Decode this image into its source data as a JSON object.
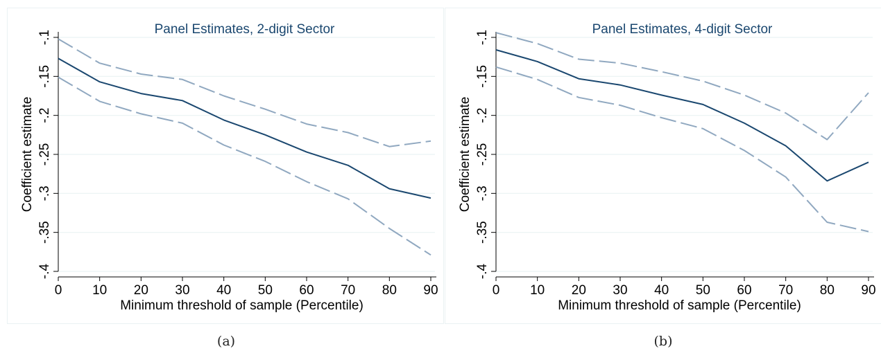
{
  "colors": {
    "estimate": "#1a476f",
    "ci": "#90a8c0",
    "grid": "#eaf2f3",
    "text": "#1a476f"
  },
  "chart_data": [
    {
      "type": "line",
      "title": "Panel Estimates, 2-digit Sector",
      "xlabel": "Minimum threshold of sample (Percentile)",
      "ylabel": "Coefficient estimate",
      "xlim": [
        0,
        90
      ],
      "ylim": [
        -0.4,
        -0.1
      ],
      "grid": true,
      "x": [
        0,
        10,
        20,
        30,
        40,
        50,
        60,
        70,
        80,
        90
      ],
      "xticks": [
        "0",
        "10",
        "20",
        "30",
        "40",
        "50",
        "60",
        "70",
        "80",
        "90"
      ],
      "yticks": [
        {
          "value": -0.1,
          "label": "-.1"
        },
        {
          "value": -0.15,
          "label": "-.15"
        },
        {
          "value": -0.2,
          "label": "-.2"
        },
        {
          "value": -0.25,
          "label": "-.25"
        },
        {
          "value": -0.3,
          "label": "-.3"
        },
        {
          "value": -0.35,
          "label": "-.35"
        },
        {
          "value": -0.4,
          "label": "-.4"
        }
      ],
      "series": [
        {
          "style": "estimate",
          "values": [
            -0.127,
            -0.157,
            -0.172,
            -0.181,
            -0.206,
            -0.225,
            -0.247,
            -0.264,
            -0.294,
            -0.306
          ]
        },
        {
          "style": "ci-upper",
          "values": [
            -0.102,
            -0.133,
            -0.147,
            -0.154,
            -0.175,
            -0.192,
            -0.211,
            -0.222,
            -0.24,
            -0.233
          ]
        },
        {
          "style": "ci-lower",
          "values": [
            -0.151,
            -0.182,
            -0.198,
            -0.21,
            -0.238,
            -0.259,
            -0.285,
            -0.307,
            -0.345,
            -0.379
          ]
        }
      ]
    },
    {
      "type": "line",
      "title": "Panel Estimates, 4-digit Sector",
      "xlabel": "Minimum threshold of sample (Percentile)",
      "ylabel": "Coefficient estimate",
      "xlim": [
        0,
        90
      ],
      "ylim": [
        -0.4,
        -0.1
      ],
      "grid": true,
      "x": [
        0,
        10,
        20,
        30,
        40,
        50,
        60,
        70,
        80,
        90
      ],
      "xticks": [
        "0",
        "10",
        "20",
        "30",
        "40",
        "50",
        "60",
        "70",
        "80",
        "90"
      ],
      "yticks": [
        {
          "value": -0.1,
          "label": "-.1"
        },
        {
          "value": -0.15,
          "label": "-.15"
        },
        {
          "value": -0.2,
          "label": "-.2"
        },
        {
          "value": -0.25,
          "label": "-.25"
        },
        {
          "value": -0.3,
          "label": "-.3"
        },
        {
          "value": -0.35,
          "label": "-.35"
        },
        {
          "value": -0.4,
          "label": "-.4"
        }
      ],
      "series": [
        {
          "style": "estimate",
          "values": [
            -0.116,
            -0.131,
            -0.153,
            -0.161,
            -0.174,
            -0.186,
            -0.21,
            -0.239,
            -0.284,
            -0.26
          ]
        },
        {
          "style": "ci-upper",
          "values": [
            -0.094,
            -0.108,
            -0.128,
            -0.133,
            -0.144,
            -0.156,
            -0.174,
            -0.197,
            -0.231,
            -0.171
          ]
        },
        {
          "style": "ci-lower",
          "values": [
            -0.138,
            -0.154,
            -0.177,
            -0.187,
            -0.203,
            -0.217,
            -0.245,
            -0.279,
            -0.337,
            -0.349
          ]
        }
      ]
    }
  ],
  "captions": {
    "a": "(a)",
    "b": "(b)"
  }
}
